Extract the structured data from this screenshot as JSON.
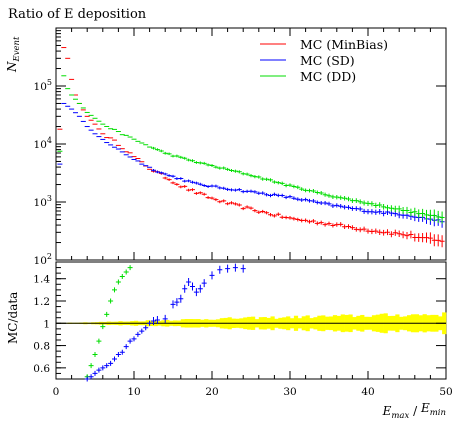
{
  "chart_data": {
    "title": "Ratio of E deposition",
    "top": {
      "type": "scatter",
      "ylabel": "N_Event",
      "yscale": "log",
      "ylim": [
        100,
        1000000
      ],
      "xlim": [
        0,
        50
      ],
      "yticks": [
        {
          "value": 100,
          "base": "10",
          "exp": "2"
        },
        {
          "value": 1000,
          "base": "10",
          "exp": "3"
        },
        {
          "value": 10000,
          "base": "10",
          "exp": "4"
        },
        {
          "value": 100000,
          "base": "10",
          "exp": "5"
        }
      ],
      "legend_position": "top-right",
      "series": [
        {
          "name": "MC (MinBias)",
          "color": "#ff0000",
          "x_start": 0.5,
          "x_step": 0.5,
          "anchors": [
            [
              0.5,
              18000
            ],
            [
              1,
              460000
            ],
            [
              1.5,
              300000
            ],
            [
              2,
              130000
            ],
            [
              2.5,
              70000
            ],
            [
              3,
              50000
            ],
            [
              4,
              30000
            ],
            [
              5,
              22000
            ],
            [
              6,
              15000
            ],
            [
              8,
              10000
            ],
            [
              10,
              6000
            ],
            [
              12,
              3800
            ],
            [
              14,
              2700
            ],
            [
              16,
              1900
            ],
            [
              18,
              1450
            ],
            [
              20,
              1150
            ],
            [
              22,
              950
            ],
            [
              25,
              750
            ],
            [
              28,
              600
            ],
            [
              30,
              520
            ],
            [
              35,
              420
            ],
            [
              40,
              330
            ],
            [
              45,
              270
            ],
            [
              50,
              200
            ]
          ],
          "noise": 0.06
        },
        {
          "name": "MC (SD)",
          "color": "#0000ff",
          "x_start": 0.5,
          "x_step": 0.5,
          "anchors": [
            [
              0.5,
              4500
            ],
            [
              1,
              50000
            ],
            [
              2,
              40000
            ],
            [
              3,
              30000
            ],
            [
              4,
              20000
            ],
            [
              5,
              15000
            ],
            [
              6,
              12000
            ],
            [
              8,
              8000
            ],
            [
              10,
              5500
            ],
            [
              12,
              3900
            ],
            [
              14,
              3000
            ],
            [
              16,
              2500
            ],
            [
              18,
              2050
            ],
            [
              20,
              1850
            ],
            [
              25,
              1500
            ],
            [
              30,
              1200
            ],
            [
              35,
              900
            ],
            [
              40,
              700
            ],
            [
              45,
              600
            ],
            [
              50,
              450
            ]
          ],
          "noise": 0.04
        },
        {
          "name": "MC (DD)",
          "color": "#00dd00",
          "x_start": 0.5,
          "x_step": 0.5,
          "anchors": [
            [
              0.5,
              7500
            ],
            [
              1,
              150000
            ],
            [
              1.5,
              90000
            ],
            [
              2,
              70000
            ],
            [
              3,
              50000
            ],
            [
              4,
              35000
            ],
            [
              6,
              22000
            ],
            [
              8,
              16000
            ],
            [
              10,
              12000
            ],
            [
              12,
              9000
            ],
            [
              14,
              7000
            ],
            [
              16,
              5800
            ],
            [
              18,
              4900
            ],
            [
              20,
              4200
            ],
            [
              25,
              2900
            ],
            [
              30,
              1900
            ],
            [
              35,
              1300
            ],
            [
              40,
              950
            ],
            [
              45,
              700
            ],
            [
              50,
              520
            ]
          ],
          "noise": 0.03
        }
      ]
    },
    "bottom": {
      "type": "scatter",
      "ylabel": "MC/data",
      "ylim": [
        0.5,
        1.55
      ],
      "xlim": [
        0,
        50
      ],
      "yticks": [
        0.6,
        0.8,
        1,
        1.2,
        1.4
      ],
      "xticks": [
        0,
        10,
        20,
        30,
        40,
        50
      ],
      "xlabel_main": "E",
      "xlabel_sub_num": "max",
      "xlabel_sub_den": "min",
      "band": {
        "color": "#ffff00",
        "anchors": [
          [
            0,
            0.003
          ],
          [
            5,
            0.01
          ],
          [
            10,
            0.02
          ],
          [
            20,
            0.04
          ],
          [
            30,
            0.055
          ],
          [
            40,
            0.07
          ],
          [
            50,
            0.08
          ]
        ]
      },
      "series": [
        {
          "name": "MC (DD)",
          "color": "#00dd00",
          "points": [
            [
              4,
              0.52
            ],
            [
              4.5,
              0.62
            ],
            [
              5,
              0.72
            ],
            [
              5.5,
              0.84
            ],
            [
              6,
              0.97
            ],
            [
              6.5,
              1.08
            ],
            [
              7,
              1.2
            ],
            [
              7.5,
              1.3
            ],
            [
              8,
              1.37
            ],
            [
              8.5,
              1.42
            ],
            [
              9,
              1.46
            ],
            [
              9.5,
              1.5
            ]
          ]
        },
        {
          "name": "MC (SD)",
          "color": "#0000ff",
          "points": [
            [
              3.5,
              0.48
            ],
            [
              4,
              0.5
            ],
            [
              4.5,
              0.52
            ],
            [
              5,
              0.55
            ],
            [
              5.5,
              0.58
            ],
            [
              6,
              0.6
            ],
            [
              6.5,
              0.62
            ],
            [
              7,
              0.64
            ],
            [
              7.5,
              0.68
            ],
            [
              8,
              0.72
            ],
            [
              8.5,
              0.74
            ],
            [
              9,
              0.79
            ],
            [
              9.5,
              0.84
            ],
            [
              10,
              0.86
            ],
            [
              10.5,
              0.9
            ],
            [
              11,
              0.93
            ],
            [
              11.5,
              0.96
            ],
            [
              12,
              1.0
            ],
            [
              12.5,
              1.02
            ],
            [
              13,
              1.03
            ],
            [
              14,
              1.04
            ],
            [
              15,
              1.17
            ],
            [
              15.5,
              1.19
            ],
            [
              16,
              1.22
            ],
            [
              16.5,
              1.31
            ],
            [
              17,
              1.37
            ],
            [
              17.5,
              1.33
            ],
            [
              18,
              1.28
            ],
            [
              18.5,
              1.31
            ],
            [
              19,
              1.36
            ],
            [
              20,
              1.43
            ],
            [
              21,
              1.48
            ],
            [
              22,
              1.49
            ],
            [
              23,
              1.5
            ],
            [
              24,
              1.49
            ]
          ]
        }
      ]
    }
  }
}
